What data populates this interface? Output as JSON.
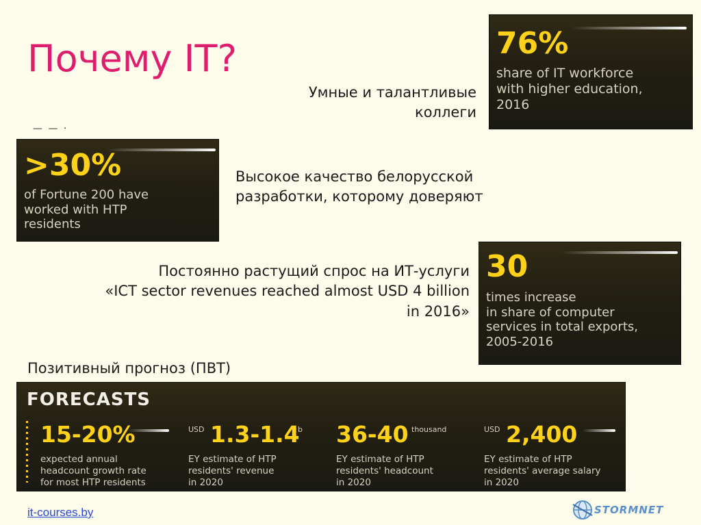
{
  "slide": {
    "title": "Почему IT?",
    "dash": "— — ·"
  },
  "points": {
    "colleagues": [
      "Умные и талантливые",
      "коллеги"
    ],
    "quality": [
      "Высокое качество белорусской",
      "разработки, которому доверяют"
    ],
    "demand": [
      "Постоянно растущий спрос на ИТ-услуги",
      "«ICT sector revenues reached almost USD 4 billion",
      "in 2016»"
    ],
    "forecast_caption": "Позитивный прогноз (ПВТ)"
  },
  "cards": {
    "education": {
      "value": "76%",
      "lines": [
        "share of IT workforce",
        "with higher education,",
        "2016"
      ]
    },
    "fortune": {
      "value": ">30%",
      "lines": [
        "of Fortune 200 have",
        "worked with HTP",
        "residents"
      ]
    },
    "exports": {
      "value": "30",
      "lines": [
        "times increase",
        "in share of computer",
        "services  in total exports,",
        "2005-2016"
      ]
    }
  },
  "forecasts": {
    "title": "FORECASTS",
    "items": [
      {
        "prefix": "",
        "value": "15-20%",
        "suffix": "",
        "lines": [
          "expected annual",
          "headcount growth rate",
          "for most HTP residents"
        ]
      },
      {
        "prefix": "USD",
        "value": "1.3-1.4",
        "suffix": "b",
        "lines": [
          "EY estimate of HTP",
          "residents' revenue",
          "in 2020"
        ]
      },
      {
        "prefix": "",
        "value": "36-40",
        "suffix": "thousand",
        "lines": [
          "EY estimate of HTP",
          "residents' headcount",
          "in 2020"
        ]
      },
      {
        "prefix": "USD",
        "value": "2,400",
        "suffix": "",
        "lines": [
          "EY estimate of HTP",
          "residents' average salary",
          "in 2020"
        ]
      }
    ]
  },
  "footer": {
    "link": "it-courses.by",
    "logo_text": "STORMNET"
  },
  "colors": {
    "title": "#dd1e6e",
    "accent": "#ffd21a",
    "card_bg": "#221f12",
    "background": "#fdfbe9"
  }
}
